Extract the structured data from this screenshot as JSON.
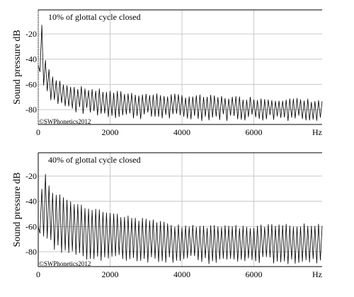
{
  "chart_data": [
    {
      "type": "line",
      "title": "10% of glottal cycle closed",
      "xlabel": "Hz",
      "ylabel": "Sound pressure dB",
      "watermark": "©SWPhonetics2012",
      "xlim": [
        0,
        7900
      ],
      "ylim": [
        -90,
        -10
      ],
      "x_ticks": [
        0,
        2000,
        4000,
        6000
      ],
      "y_ticks": [
        -20,
        -40,
        -60,
        -80
      ],
      "grid": true,
      "series": [
        {
          "harmonic_spacing_hz": 100,
          "envelope_hz": [
            0,
            100,
            200,
            300,
            400,
            600,
            800,
            1000,
            1500,
            2000,
            3000,
            4000,
            5000,
            6000,
            7000,
            7900
          ],
          "peak_db": [
            -20,
            -13,
            -40,
            -48,
            -55,
            -58,
            -60,
            -62,
            -64,
            -66,
            -68,
            -69,
            -70,
            -71,
            -72,
            -73
          ],
          "trough_db": [
            -45,
            -55,
            -62,
            -68,
            -72,
            -75,
            -78,
            -80,
            -82,
            -84,
            -85,
            -86,
            -86,
            -86,
            -86,
            -86
          ]
        }
      ]
    },
    {
      "type": "line",
      "title": "40% of glottal cycle closed",
      "xlabel": "Hz",
      "ylabel": "Sound pressure dB",
      "watermark": "©SWPhonetics2012",
      "xlim": [
        0,
        7900
      ],
      "ylim": [
        -90,
        -10
      ],
      "x_ticks": [
        0,
        2000,
        4000,
        6000
      ],
      "y_ticks": [
        -20,
        -40,
        -60,
        -80
      ],
      "grid": true,
      "series": [
        {
          "harmonic_spacing_hz": 100,
          "envelope_hz": [
            0,
            100,
            200,
            300,
            400,
            600,
            800,
            1000,
            1500,
            2000,
            3000,
            4000,
            5000,
            6000,
            7000,
            7900
          ],
          "peak_db": [
            -45,
            -30,
            -17,
            -27,
            -32,
            -36,
            -38,
            -41,
            -46,
            -50,
            -55,
            -60,
            -60,
            -60,
            -59,
            -58
          ],
          "trough_db": [
            -60,
            -65,
            -70,
            -72,
            -75,
            -78,
            -80,
            -82,
            -84,
            -85,
            -86,
            -86,
            -87,
            -87,
            -87,
            -87
          ]
        }
      ]
    }
  ]
}
